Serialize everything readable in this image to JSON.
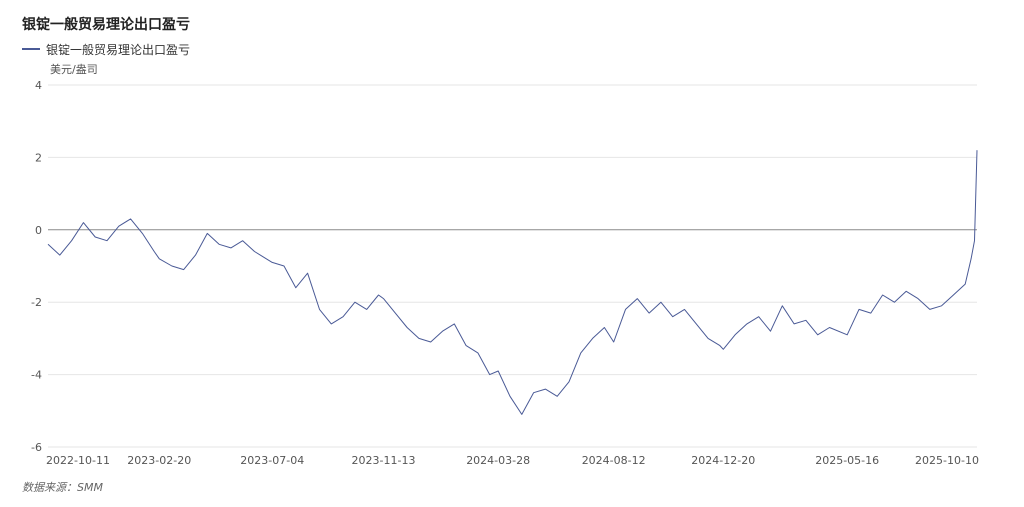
{
  "title": "银锭一般贸易理论出口盈亏",
  "source": "数据来源：SMM",
  "colors": {
    "series": "#4a5a96",
    "grid": "#e6e6e6",
    "zero": "#8a8a8a"
  },
  "chart_data": {
    "type": "line",
    "title": "银锭一般贸易理论出口盈亏",
    "ylabel": "美元/盎司",
    "ylim": [
      -6,
      4
    ],
    "yticks": [
      4,
      2,
      0,
      -2,
      -4,
      -6
    ],
    "xticks": [
      "2022-10-11",
      "2023-02-20",
      "2023-07-04",
      "2023-11-13",
      "2024-03-28",
      "2024-08-12",
      "2024-12-20",
      "2025-05-16",
      "2025-10-10"
    ],
    "grid": true,
    "legend": "top-left",
    "series": [
      {
        "name": "银锭一般贸易理论出口盈亏",
        "x": [
          "2022-10-11",
          "2022-10-25",
          "2022-11-08",
          "2022-11-22",
          "2022-12-06",
          "2022-12-20",
          "2023-01-03",
          "2023-01-17",
          "2023-01-31",
          "2023-02-14",
          "2023-02-20",
          "2023-03-07",
          "2023-03-21",
          "2023-04-04",
          "2023-04-18",
          "2023-05-02",
          "2023-05-16",
          "2023-05-30",
          "2023-06-13",
          "2023-06-27",
          "2023-07-04",
          "2023-07-18",
          "2023-08-01",
          "2023-08-15",
          "2023-08-29",
          "2023-09-12",
          "2023-09-26",
          "2023-10-10",
          "2023-10-24",
          "2023-11-07",
          "2023-11-13",
          "2023-11-27",
          "2023-12-11",
          "2023-12-25",
          "2024-01-08",
          "2024-01-22",
          "2024-02-05",
          "2024-02-19",
          "2024-03-04",
          "2024-03-18",
          "2024-03-28",
          "2024-04-11",
          "2024-04-25",
          "2024-05-09",
          "2024-05-23",
          "2024-06-06",
          "2024-06-20",
          "2024-07-04",
          "2024-07-18",
          "2024-08-01",
          "2024-08-12",
          "2024-08-26",
          "2024-09-09",
          "2024-09-23",
          "2024-10-07",
          "2024-10-21",
          "2024-11-04",
          "2024-11-18",
          "2024-12-02",
          "2024-12-16",
          "2024-12-20",
          "2025-01-03",
          "2025-01-17",
          "2025-01-31",
          "2025-02-14",
          "2025-02-28",
          "2025-03-14",
          "2025-03-28",
          "2025-04-11",
          "2025-04-25",
          "2025-05-16",
          "2025-05-30",
          "2025-06-13",
          "2025-06-27",
          "2025-07-11",
          "2025-07-25",
          "2025-08-08",
          "2025-08-22",
          "2025-09-05",
          "2025-09-19",
          "2025-10-03",
          "2025-10-10",
          "2025-10-14",
          "2025-10-17"
        ],
        "values": [
          -0.4,
          -0.7,
          -0.3,
          0.2,
          -0.2,
          -0.3,
          0.1,
          0.3,
          -0.1,
          -0.6,
          -0.8,
          -1.0,
          -1.1,
          -0.7,
          -0.1,
          -0.4,
          -0.5,
          -0.3,
          -0.6,
          -0.8,
          -0.9,
          -1.0,
          -1.6,
          -1.2,
          -2.2,
          -2.6,
          -2.4,
          -2.0,
          -2.2,
          -1.8,
          -1.9,
          -2.3,
          -2.7,
          -3.0,
          -3.1,
          -2.8,
          -2.6,
          -3.2,
          -3.4,
          -4.0,
          -3.9,
          -4.6,
          -5.1,
          -4.5,
          -4.4,
          -4.6,
          -4.2,
          -3.4,
          -3.0,
          -2.7,
          -3.1,
          -2.2,
          -1.9,
          -2.3,
          -2.0,
          -2.4,
          -2.2,
          -2.6,
          -3.0,
          -3.2,
          -3.3,
          -2.9,
          -2.6,
          -2.4,
          -2.8,
          -2.1,
          -2.6,
          -2.5,
          -2.9,
          -2.7,
          -2.9,
          -2.2,
          -2.3,
          -1.8,
          -2.0,
          -1.7,
          -1.9,
          -2.2,
          -2.1,
          -1.8,
          -1.5,
          -0.8,
          -0.3,
          2.2
        ]
      }
    ]
  }
}
